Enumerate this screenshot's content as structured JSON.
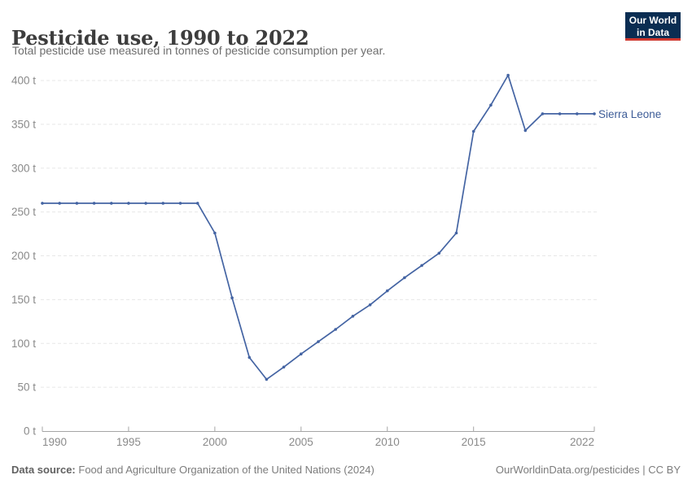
{
  "header": {
    "title": "Pesticide use, 1990 to 2022",
    "subtitle": "Total pesticide use measured in tonnes of pesticide consumption per year."
  },
  "logo": {
    "line1": "Our World",
    "line2": "in Data",
    "bg_color": "#0a2d52",
    "accent_color": "#d0382f"
  },
  "chart_data": {
    "type": "line",
    "title": "Pesticide use, 1990 to 2022",
    "xlabel": "",
    "ylabel": "tonnes of pesticide consumption per year",
    "x": [
      1990,
      1991,
      1992,
      1993,
      1994,
      1995,
      1996,
      1997,
      1998,
      1999,
      2000,
      2001,
      2002,
      2003,
      2004,
      2005,
      2006,
      2007,
      2008,
      2009,
      2010,
      2011,
      2012,
      2013,
      2014,
      2015,
      2016,
      2017,
      2018,
      2019,
      2020,
      2021,
      2022
    ],
    "series": [
      {
        "name": "Sierra Leone",
        "color": "#4464a3",
        "values": [
          260,
          260,
          260,
          260,
          260,
          260,
          260,
          260,
          260,
          260,
          226,
          152,
          84,
          59,
          73,
          88,
          102,
          116,
          131,
          144,
          160,
          175,
          189,
          203,
          226,
          342,
          372,
          406,
          343,
          362,
          362,
          362,
          362
        ]
      }
    ],
    "ylim": [
      0,
      400
    ],
    "xlim": [
      1990,
      2022
    ],
    "yticks": [
      {
        "value": 0,
        "label": "0 t"
      },
      {
        "value": 50,
        "label": "50 t"
      },
      {
        "value": 100,
        "label": "100 t"
      },
      {
        "value": 150,
        "label": "150 t"
      },
      {
        "value": 200,
        "label": "200 t"
      },
      {
        "value": 250,
        "label": "250 t"
      },
      {
        "value": 300,
        "label": "300 t"
      },
      {
        "value": 350,
        "label": "350 t"
      },
      {
        "value": 400,
        "label": "400 t"
      }
    ],
    "xticks": [
      {
        "value": 1990,
        "label": "1990"
      },
      {
        "value": 1995,
        "label": "1995"
      },
      {
        "value": 2000,
        "label": "2000"
      },
      {
        "value": 2005,
        "label": "2005"
      },
      {
        "value": 2010,
        "label": "2010"
      },
      {
        "value": 2015,
        "label": "2015"
      },
      {
        "value": 2022,
        "label": "2022"
      }
    ],
    "grid": "horizontal-dashed",
    "legend_position": "right-of-line-end",
    "markers": true
  },
  "footer": {
    "source_label": "Data source:",
    "source_text": "Food and Agriculture Organization of the United Nations (2024)",
    "credit": "OurWorldinData.org/pesticides | CC BY"
  }
}
